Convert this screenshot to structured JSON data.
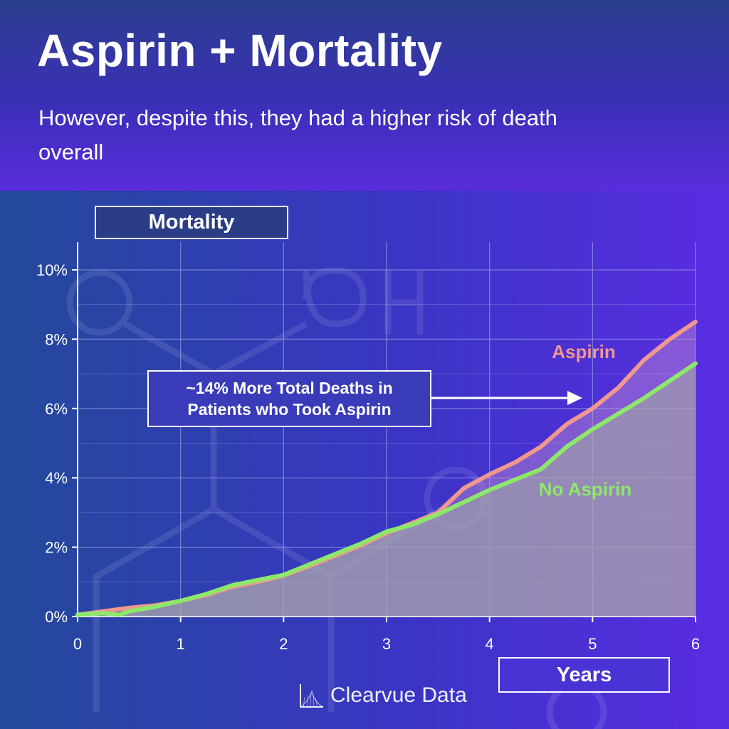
{
  "title": "Aspirin + Mortality",
  "subtitle": "However, despite this, they had a higher risk of death overall",
  "callout": {
    "line1": "~14% More Total Deaths in",
    "line2": "Patients who Took Aspirin"
  },
  "brand": "Clearvue Data",
  "colors": {
    "aspirin": "#f0978e",
    "no_aspirin": "#8de86a",
    "grid": "#8d94e0"
  },
  "chart_data": {
    "type": "line",
    "xlabel": "Years",
    "ylabel": "Mortality",
    "xlim": [
      0,
      6
    ],
    "ylim": [
      0,
      10
    ],
    "x_ticks": [
      "0",
      "1",
      "2",
      "3",
      "4",
      "5",
      "6"
    ],
    "y_ticks": [
      "0%",
      "2%",
      "4%",
      "6%",
      "8%",
      "10%"
    ],
    "grid": true,
    "series": [
      {
        "name": "Aspirin",
        "x": [
          0,
          0.25,
          0.5,
          0.75,
          1.0,
          1.25,
          1.5,
          1.75,
          2.0,
          2.25,
          2.5,
          2.75,
          3.0,
          3.25,
          3.5,
          3.75,
          4.0,
          4.25,
          4.5,
          4.75,
          5.0,
          5.25,
          5.5,
          5.75,
          6.0
        ],
        "y": [
          0.05,
          0.15,
          0.25,
          0.32,
          0.45,
          0.62,
          0.85,
          1.0,
          1.18,
          1.45,
          1.75,
          2.05,
          2.4,
          2.7,
          3.0,
          3.7,
          4.1,
          4.45,
          4.9,
          5.55,
          6.0,
          6.6,
          7.4,
          8.0,
          8.5
        ]
      },
      {
        "name": "No Aspirin",
        "x": [
          0,
          0.25,
          0.4,
          0.5,
          0.75,
          1.0,
          1.25,
          1.5,
          1.75,
          2.0,
          2.25,
          2.5,
          2.75,
          3.0,
          3.25,
          3.5,
          3.75,
          4.0,
          4.25,
          4.5,
          4.75,
          5.0,
          5.25,
          5.5,
          5.75,
          6.0
        ],
        "y": [
          0.05,
          0.1,
          0.05,
          0.15,
          0.28,
          0.45,
          0.65,
          0.9,
          1.05,
          1.2,
          1.5,
          1.8,
          2.1,
          2.45,
          2.65,
          2.95,
          3.3,
          3.65,
          3.95,
          4.25,
          4.9,
          5.4,
          5.85,
          6.3,
          6.8,
          7.3
        ]
      }
    ],
    "annotations": [
      "Aspirin",
      "No Aspirin"
    ]
  }
}
